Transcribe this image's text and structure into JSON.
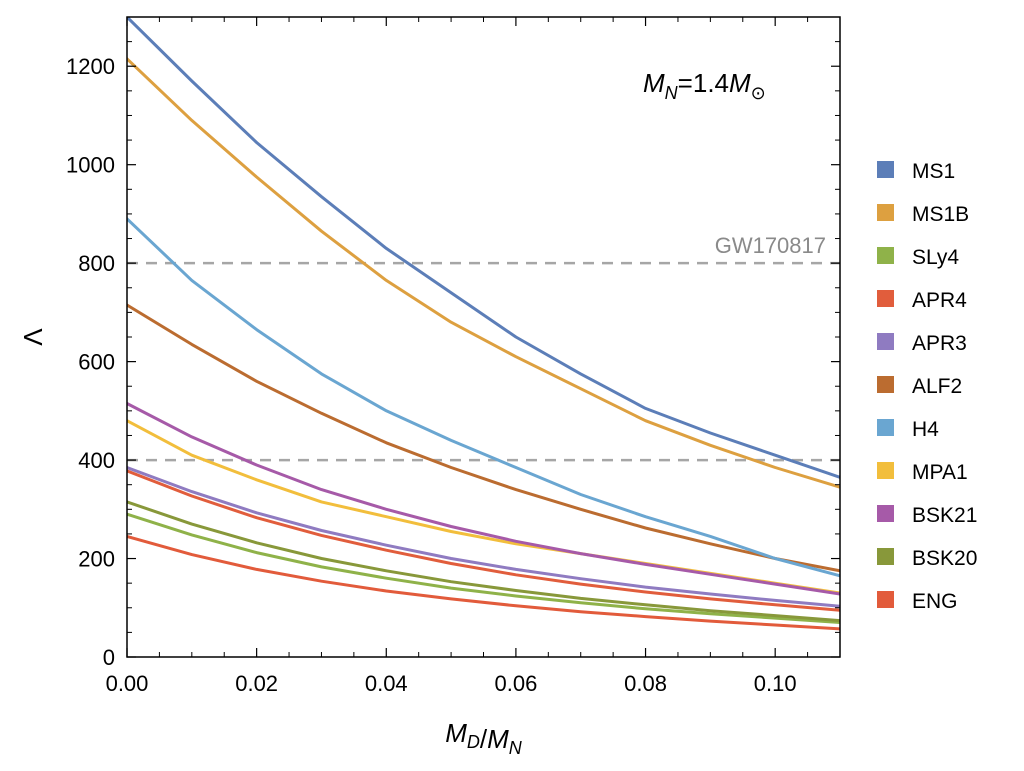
{
  "chart_data": {
    "type": "line",
    "xlabel": "M_D/M_N",
    "ylabel": "Λ",
    "xlim": [
      0,
      0.11
    ],
    "ylim": [
      0,
      1300
    ],
    "x_ticks": [
      0.0,
      0.02,
      0.04,
      0.06,
      0.08,
      0.1
    ],
    "x_tick_labels": [
      "0.00",
      "0.02",
      "0.04",
      "0.06",
      "0.08",
      "0.10"
    ],
    "y_ticks": [
      0,
      200,
      400,
      600,
      800,
      1000,
      1200
    ],
    "y_tick_labels": [
      "0",
      "200",
      "400",
      "600",
      "800",
      "1000",
      "1200"
    ],
    "grid": false,
    "legend_position": "right-outside",
    "annotation": {
      "base": "M",
      "sub1": "N",
      "mid": "=1.4",
      "base2": "M",
      "sub2": "⊙"
    },
    "reference_lines": [
      {
        "y": 800,
        "label": "GW170817",
        "color": "#a6a6a6"
      },
      {
        "y": 400,
        "label": "",
        "color": "#a6a6a6"
      }
    ],
    "x": [
      0.0,
      0.01,
      0.02,
      0.03,
      0.04,
      0.05,
      0.06,
      0.07,
      0.08,
      0.09,
      0.1,
      0.11
    ],
    "series": [
      {
        "name": "MS1",
        "color": "#5c7eb8",
        "values": [
          1300,
          1170,
          1045,
          935,
          830,
          740,
          650,
          575,
          505,
          455,
          410,
          365
        ]
      },
      {
        "name": "MS1B",
        "color": "#dda040",
        "values": [
          1215,
          1090,
          975,
          865,
          765,
          680,
          610,
          545,
          480,
          430,
          385,
          345
        ]
      },
      {
        "name": "SLy4",
        "color": "#8fb249",
        "values": [
          290,
          248,
          212,
          183,
          160,
          140,
          124,
          110,
          98,
          88,
          79,
          70
        ]
      },
      {
        "name": "APR4",
        "color": "#e15d3c",
        "values": [
          378,
          327,
          283,
          247,
          217,
          190,
          167,
          148,
          132,
          118,
          106,
          95
        ]
      },
      {
        "name": "APR3",
        "color": "#8f7bc1",
        "values": [
          385,
          336,
          293,
          257,
          227,
          200,
          178,
          159,
          142,
          128,
          115,
          103
        ]
      },
      {
        "name": "ALF2",
        "color": "#bb6c30",
        "values": [
          715,
          635,
          560,
          495,
          435,
          385,
          340,
          300,
          262,
          230,
          200,
          175
        ]
      },
      {
        "name": "H4",
        "color": "#6aa6d1",
        "values": [
          890,
          765,
          665,
          575,
          500,
          440,
          385,
          330,
          285,
          245,
          200,
          165
        ]
      },
      {
        "name": "MPA1",
        "color": "#f2be3c",
        "values": [
          480,
          410,
          360,
          315,
          285,
          255,
          230,
          210,
          190,
          170,
          150,
          130
        ]
      },
      {
        "name": "BSK21",
        "color": "#a65aa8",
        "values": [
          515,
          447,
          390,
          340,
          300,
          265,
          235,
          210,
          188,
          168,
          148,
          128
        ]
      },
      {
        "name": "BSK20",
        "color": "#88983a",
        "values": [
          315,
          270,
          232,
          200,
          175,
          153,
          135,
          119,
          106,
          94,
          84,
          74
        ]
      },
      {
        "name": "ENG",
        "color": "#e25b3b",
        "values": [
          245,
          208,
          178,
          154,
          134,
          118,
          104,
          92,
          82,
          73,
          65,
          57
        ]
      }
    ]
  }
}
